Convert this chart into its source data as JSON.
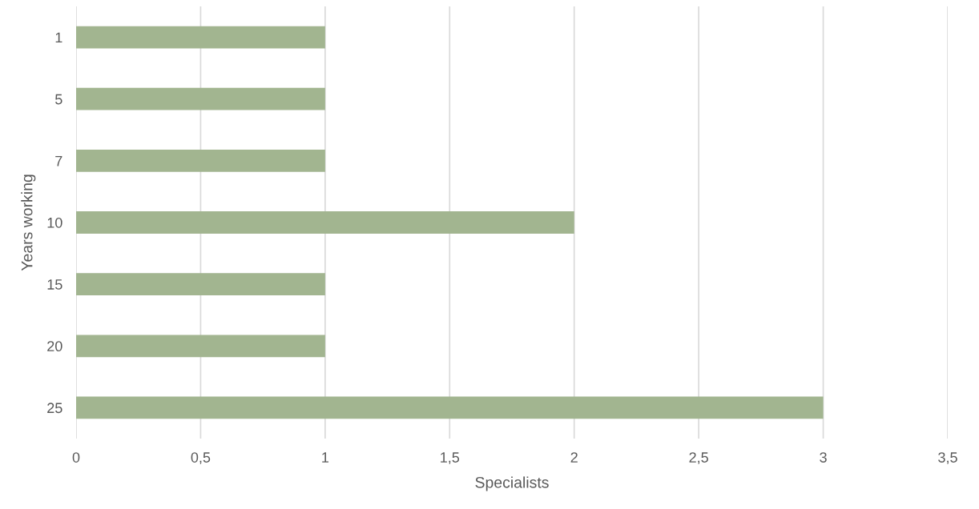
{
  "chart_data": {
    "type": "bar",
    "orientation": "horizontal",
    "xlabel": "Specialists",
    "ylabel": "Years working",
    "categories": [
      "1",
      "5",
      "7",
      "10",
      "15",
      "20",
      "25"
    ],
    "values": [
      1,
      1,
      1,
      2,
      1,
      1,
      3
    ],
    "color": "#a2b590",
    "xlim": [
      0,
      3.5
    ],
    "xticks": [
      0,
      {
        "value": 0.5,
        "label": "0,5"
      },
      1,
      {
        "value": 1.5,
        "label": "1,5"
      },
      2,
      {
        "value": 2.5,
        "label": "2,5"
      },
      3,
      {
        "value": 3.5,
        "label": "3,5"
      }
    ],
    "grid": "x",
    "legend": false
  }
}
